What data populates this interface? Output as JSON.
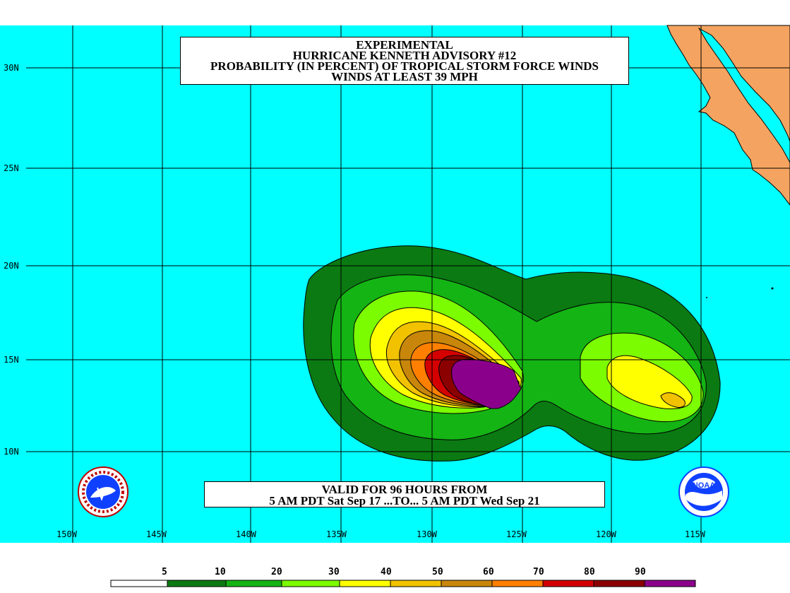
{
  "title": {
    "line1": "EXPERIMENTAL",
    "line2": "HURRICANE KENNETH ADVISORY #12",
    "line3": "PROBABILITY (IN PERCENT) OF TROPICAL STORM FORCE WINDS",
    "line4": "WINDS AT LEAST 39 MPH"
  },
  "validity": {
    "line1": "VALID FOR 96 HOURS FROM",
    "line2": "5 AM PDT Sat Sep 17 ...TO... 5 AM PDT Wed Sep 21"
  },
  "lat_labels": [
    "30N",
    "25N",
    "20N",
    "15N",
    "10N"
  ],
  "lon_labels": [
    "150W",
    "145W",
    "140W",
    "135W",
    "130W",
    "125W",
    "120W",
    "115W"
  ],
  "legend": {
    "labels": [
      "5",
      "10",
      "20",
      "30",
      "40",
      "50",
      "60",
      "70",
      "80",
      "90"
    ],
    "colors": [
      "#ffffff",
      "#0b7a12",
      "#14b414",
      "#7cfc00",
      "#ffff00",
      "#f2c200",
      "#c8860b",
      "#ff8000",
      "#d40000",
      "#8b0000",
      "#8b008b"
    ]
  },
  "colors": {
    "ocean": "#00ffff",
    "land": "#f4a460",
    "grid": "#000000"
  },
  "logos": {
    "left": "nws-logo",
    "right": "noaa-logo",
    "noaa_text": "NOAA"
  }
}
